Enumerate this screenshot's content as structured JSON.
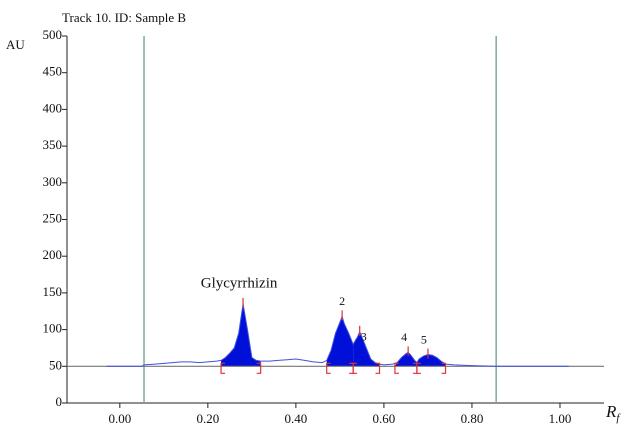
{
  "chart_data": {
    "type": "line",
    "title": "Track 10. ID: Sample B",
    "ylabel": "AU",
    "xlabel": "R",
    "xlabel_sub": "f",
    "xlim": [
      -0.12,
      1.1
    ],
    "ylim": [
      0,
      500
    ],
    "xticks": [
      {
        "value": 0,
        "label": "0.00"
      },
      {
        "value": 0.2,
        "label": "0.20"
      },
      {
        "value": 0.4,
        "label": "0.40"
      },
      {
        "value": 0.6,
        "label": "0.60"
      },
      {
        "value": 0.8,
        "label": "0.80"
      },
      {
        "value": 1.0,
        "label": "1.00"
      }
    ],
    "yticks": [
      0,
      50,
      100,
      150,
      200,
      250,
      300,
      350,
      400,
      450,
      500
    ],
    "baseline": 50,
    "markers": [
      0.055,
      0.855
    ],
    "color": "#3f51e0",
    "fill_color": "#0010d8",
    "x": [
      -0.03,
      0.05,
      0.055,
      0.08,
      0.1,
      0.12,
      0.14,
      0.16,
      0.18,
      0.2,
      0.22,
      0.23,
      0.24,
      0.25,
      0.26,
      0.27,
      0.28,
      0.29,
      0.3,
      0.31,
      0.32,
      0.34,
      0.36,
      0.38,
      0.4,
      0.42,
      0.44,
      0.46,
      0.47,
      0.48,
      0.49,
      0.5,
      0.505,
      0.51,
      0.52,
      0.53,
      0.54,
      0.545,
      0.55,
      0.56,
      0.57,
      0.58,
      0.59,
      0.6,
      0.62,
      0.63,
      0.64,
      0.65,
      0.655,
      0.66,
      0.67,
      0.675,
      0.68,
      0.69,
      0.7,
      0.71,
      0.72,
      0.73,
      0.74,
      0.76,
      0.8,
      0.85,
      1.02
    ],
    "values": [
      50,
      50,
      52,
      53,
      54,
      55,
      56,
      56,
      55,
      56,
      57,
      58,
      62,
      68,
      75,
      95,
      135,
      100,
      62,
      58,
      57,
      57,
      58,
      59,
      60,
      58,
      56,
      55,
      58,
      72,
      95,
      110,
      118,
      108,
      95,
      80,
      90,
      97,
      90,
      75,
      60,
      55,
      53,
      52,
      53,
      55,
      62,
      67,
      69,
      66,
      58,
      55,
      60,
      64,
      66,
      65,
      62,
      57,
      53,
      52,
      51,
      50,
      50
    ],
    "peaks": [
      {
        "label": "Glycyrrhizin",
        "start": 0.23,
        "end": 0.32,
        "apex": 0.28
      },
      {
        "label": "2",
        "start": 0.47,
        "end": 0.53,
        "apex": 0.505
      },
      {
        "label": "3",
        "start": 0.53,
        "end": 0.59,
        "apex": 0.545
      },
      {
        "label": "4",
        "start": 0.625,
        "end": 0.675,
        "apex": 0.655
      },
      {
        "label": "5",
        "start": 0.675,
        "end": 0.74,
        "apex": 0.7
      }
    ]
  }
}
